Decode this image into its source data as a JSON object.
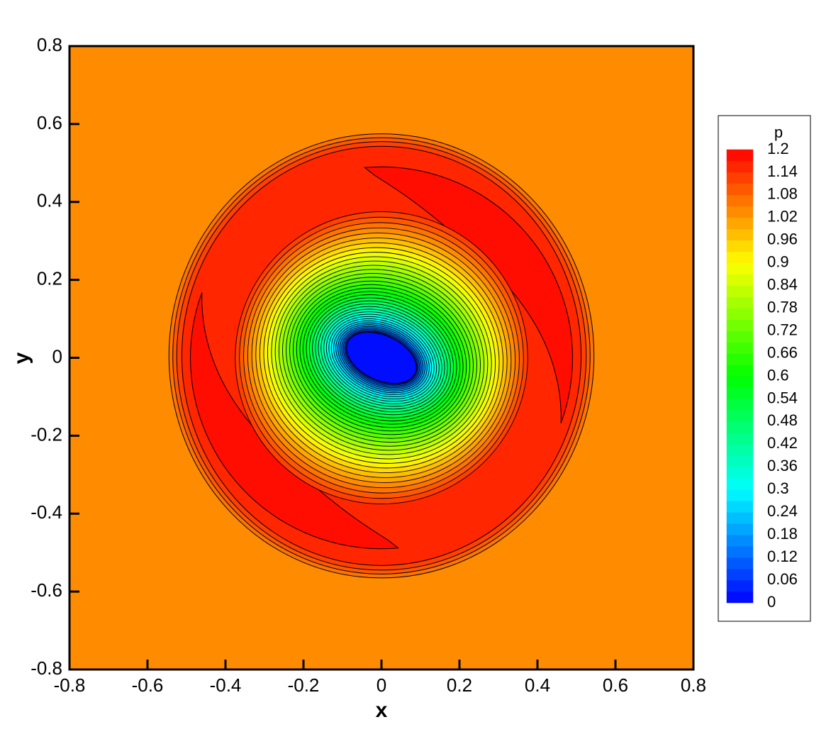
{
  "chart_data": {
    "type": "contour",
    "xlabel": "x",
    "ylabel": "y",
    "xlim": [
      -0.8,
      0.8
    ],
    "ylim": [
      -0.8,
      0.8
    ],
    "xticks": [
      -0.8,
      -0.6,
      -0.4,
      -0.2,
      0,
      0.2,
      0.4,
      0.6,
      0.8
    ],
    "yticks": [
      -0.8,
      -0.6,
      -0.4,
      -0.2,
      0,
      0.2,
      0.4,
      0.6,
      0.8
    ],
    "colorbar": {
      "title": "p",
      "ticks": [
        0,
        0.06,
        0.12,
        0.18,
        0.24,
        0.3,
        0.36,
        0.42,
        0.48,
        0.54,
        0.6,
        0.66,
        0.72,
        0.78,
        0.84,
        0.9,
        0.96,
        1.02,
        1.08,
        1.14,
        1.2
      ],
      "levels": [
        0,
        0.03,
        0.06,
        0.09,
        0.12,
        0.15,
        0.18,
        0.21,
        0.24,
        0.27,
        0.3,
        0.33,
        0.36,
        0.39,
        0.42,
        0.45,
        0.48,
        0.51,
        0.54,
        0.57,
        0.6,
        0.63,
        0.66,
        0.69,
        0.72,
        0.75,
        0.78,
        0.81,
        0.84,
        0.87,
        0.9,
        0.93,
        0.96,
        0.99,
        1.02,
        1.05,
        1.08,
        1.11,
        1.14,
        1.17,
        1.2
      ],
      "colormap": [
        "#0000ff",
        "#00ffff",
        "#00ff00",
        "#ffff00",
        "#ff0000"
      ]
    }
  }
}
